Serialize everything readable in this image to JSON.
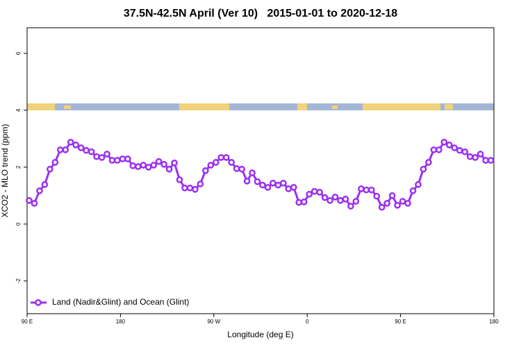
{
  "chart_data": {
    "type": "line",
    "title": "37.5N-42.5N April (Ver 10)   2015-01-01 to 2020-12-18",
    "xlabel": "Longitude (deg E)",
    "ylabel": "XCO2 - MLO trend (ppm)",
    "x": [
      92,
      97,
      102,
      107,
      112,
      117,
      122,
      127,
      132,
      137,
      142,
      147,
      152,
      157,
      162,
      167,
      172,
      177,
      182,
      187,
      192,
      197,
      202,
      207,
      212,
      217,
      222,
      227,
      232,
      237,
      242,
      247,
      252,
      257,
      262,
      267,
      272,
      277,
      282,
      287,
      292,
      297,
      302,
      307,
      312,
      317,
      322,
      327,
      332,
      337,
      342,
      347,
      352,
      357,
      362,
      367,
      372,
      377,
      382,
      387,
      392,
      397,
      402,
      407,
      412,
      417,
      422,
      427,
      432,
      437,
      442,
      447,
      452,
      457,
      462,
      467,
      472,
      477,
      482,
      487,
      492,
      497,
      502,
      507,
      512,
      517,
      522,
      527,
      532,
      537
    ],
    "series": [
      {
        "name": "Land (Nadir&Glint) and Ocean (Glint)",
        "color": "#9b30f0",
        "values": [
          0.83,
          0.73,
          1.17,
          1.39,
          1.93,
          2.17,
          2.61,
          2.61,
          2.88,
          2.78,
          2.68,
          2.59,
          2.54,
          2.37,
          2.34,
          2.46,
          2.24,
          2.24,
          2.29,
          2.29,
          2.05,
          2.02,
          2.07,
          2.0,
          2.07,
          2.2,
          2.1,
          1.93,
          2.15,
          1.56,
          1.27,
          1.27,
          1.22,
          1.41,
          1.88,
          2.07,
          2.17,
          2.34,
          2.34,
          2.17,
          1.95,
          1.93,
          1.51,
          1.8,
          1.49,
          1.37,
          1.29,
          1.44,
          1.37,
          1.44,
          1.24,
          1.29,
          0.76,
          0.78,
          1.05,
          1.15,
          1.12,
          0.93,
          0.83,
          0.95,
          0.83,
          0.88,
          0.63,
          0.8,
          1.24,
          1.2,
          1.2,
          0.98,
          0.59,
          0.73,
          1.0,
          0.66,
          0.8,
          0.73,
          1.17,
          1.39,
          1.93,
          2.17,
          2.61,
          2.61,
          2.88,
          2.78,
          2.68,
          2.59,
          2.54,
          2.37,
          2.34,
          2.46,
          2.24,
          2.24
        ]
      }
    ],
    "xlim": [
      90,
      540
    ],
    "xticks": [
      {
        "value": 90,
        "label": "90 E"
      },
      180,
      {
        "value": 270,
        "label": "90 W"
      },
      {
        "value": 360,
        "label": "0"
      },
      {
        "value": 450,
        "label": "90 E"
      },
      {
        "value": 540,
        "label": "180"
      }
    ],
    "ylim": [
      -3.15,
      6.9
    ],
    "yticks": [
      -2,
      0,
      2,
      4,
      6
    ],
    "legend": "bottomleft"
  }
}
